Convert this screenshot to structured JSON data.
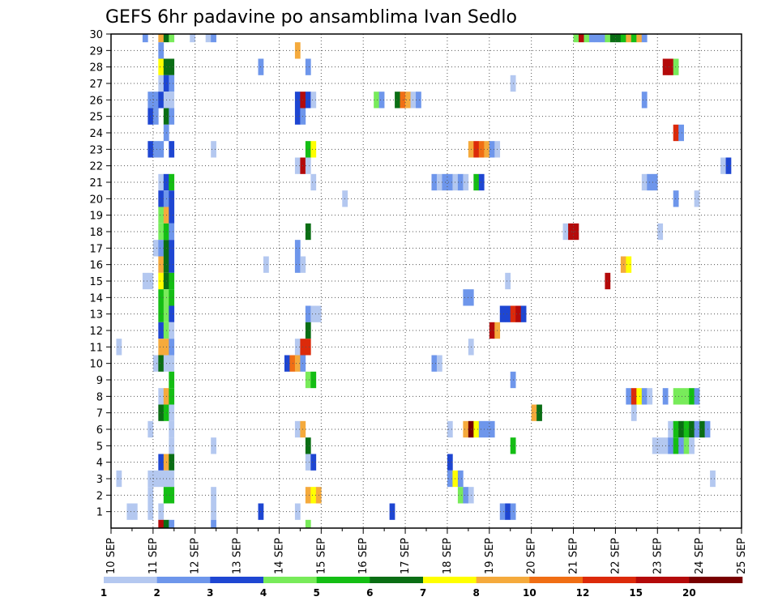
{
  "chart_data": {
    "type": "heatmap",
    "title": "GEFS 6hr padavine po ansamblima Ivan Sedlo",
    "xlabel": "",
    "ylabel": "",
    "x_tick_labels": [
      "10 SEP",
      "11 SEP",
      "12 SEP",
      "13 SEP",
      "14 SEP",
      "15 SEP",
      "16 SEP",
      "17 SEP",
      "18 SEP",
      "19 SEP",
      "20 SEP",
      "21 SEP",
      "22 SEP",
      "23 SEP",
      "24 SEP",
      "25 SEP"
    ],
    "xlim": [
      10,
      25
    ],
    "y_tick_labels": [
      "1",
      "2",
      "3",
      "4",
      "5",
      "6",
      "7",
      "8",
      "9",
      "10",
      "11",
      "12",
      "13",
      "14",
      "15",
      "16",
      "17",
      "18",
      "19",
      "20",
      "21",
      "22",
      "23",
      "24",
      "25",
      "26",
      "27",
      "28",
      "29",
      "30"
    ],
    "ylim": [
      0,
      30
    ],
    "grid": true,
    "colorbar": {
      "levels": [
        1,
        2,
        3,
        4,
        5,
        6,
        7,
        8,
        10,
        12,
        15,
        20
      ],
      "labels": [
        "1",
        "2",
        "3",
        "4",
        "5",
        "6",
        "7",
        "8",
        "10",
        "12",
        "15",
        "20"
      ],
      "colors": [
        "#b4c8f0",
        "#6e96eb",
        "#1e46d2",
        "#78eb5a",
        "#14be14",
        "#0a6e14",
        "#ffff00",
        "#f5aa3c",
        "#f06e14",
        "#dc2a0a",
        "#b40a0a",
        "#780000"
      ]
    },
    "cells": [
      {
        "row": 30,
        "cells": [
          [
            6,
            2
          ],
          [
            9,
            8
          ],
          [
            10,
            6
          ],
          [
            11,
            4
          ],
          [
            15,
            1
          ],
          [
            18,
            1
          ],
          [
            19,
            2
          ],
          [
            88,
            4
          ],
          [
            89,
            11
          ],
          [
            90,
            4
          ],
          [
            91,
            2
          ],
          [
            92,
            2
          ],
          [
            93,
            2
          ],
          [
            94,
            4
          ],
          [
            95,
            6
          ],
          [
            96,
            6
          ],
          [
            97,
            5
          ],
          [
            98,
            8
          ],
          [
            99,
            5
          ],
          [
            100,
            8
          ],
          [
            101,
            2
          ]
        ]
      },
      {
        "row": 29,
        "cells": [
          [
            9,
            2
          ],
          [
            35,
            8
          ]
        ]
      },
      {
        "row": 28,
        "cells": [
          [
            9,
            7
          ],
          [
            10,
            6
          ],
          [
            11,
            6
          ],
          [
            28,
            2
          ],
          [
            37,
            2
          ],
          [
            105,
            11
          ],
          [
            106,
            11
          ],
          [
            107,
            4
          ]
        ]
      },
      {
        "row": 27,
        "cells": [
          [
            9,
            1
          ],
          [
            10,
            3
          ],
          [
            11,
            2
          ],
          [
            76,
            1
          ]
        ]
      },
      {
        "row": 26,
        "cells": [
          [
            7,
            2
          ],
          [
            8,
            2
          ],
          [
            9,
            3
          ],
          [
            10,
            1
          ],
          [
            11,
            1
          ],
          [
            35,
            3
          ],
          [
            36,
            11
          ],
          [
            37,
            3
          ],
          [
            38,
            1
          ],
          [
            50,
            4
          ],
          [
            51,
            2
          ],
          [
            54,
            6
          ],
          [
            55,
            9
          ],
          [
            56,
            8
          ],
          [
            57,
            1
          ],
          [
            58,
            2
          ],
          [
            101,
            2
          ]
        ]
      },
      {
        "row": 25,
        "cells": [
          [
            7,
            3
          ],
          [
            8,
            2
          ],
          [
            10,
            6
          ],
          [
            11,
            2
          ],
          [
            35,
            3
          ],
          [
            36,
            2
          ]
        ]
      },
      {
        "row": 24,
        "cells": [
          [
            10,
            2
          ],
          [
            107,
            10
          ],
          [
            108,
            2
          ]
        ]
      },
      {
        "row": 23,
        "cells": [
          [
            7,
            3
          ],
          [
            8,
            2
          ],
          [
            9,
            2
          ],
          [
            11,
            3
          ],
          [
            19,
            1
          ],
          [
            37,
            5
          ],
          [
            38,
            7
          ],
          [
            68,
            8
          ],
          [
            69,
            10
          ],
          [
            70,
            9
          ],
          [
            71,
            8
          ],
          [
            72,
            2
          ],
          [
            73,
            1
          ]
        ]
      },
      {
        "row": 22,
        "cells": [
          [
            35,
            1
          ],
          [
            36,
            11
          ],
          [
            37,
            1
          ],
          [
            116,
            1
          ],
          [
            117,
            3
          ]
        ]
      },
      {
        "row": 21,
        "cells": [
          [
            9,
            1
          ],
          [
            10,
            3
          ],
          [
            11,
            5
          ],
          [
            38,
            1
          ],
          [
            61,
            2
          ],
          [
            62,
            1
          ],
          [
            63,
            2
          ],
          [
            64,
            2
          ],
          [
            65,
            1
          ],
          [
            66,
            2
          ],
          [
            67,
            1
          ],
          [
            69,
            5
          ],
          [
            70,
            3
          ],
          [
            101,
            1
          ],
          [
            102,
            2
          ],
          [
            103,
            2
          ]
        ]
      },
      {
        "row": 20,
        "cells": [
          [
            9,
            3
          ],
          [
            10,
            2
          ],
          [
            11,
            3
          ],
          [
            44,
            1
          ],
          [
            107,
            2
          ],
          [
            111,
            1
          ]
        ]
      },
      {
        "row": 19,
        "cells": [
          [
            9,
            4
          ],
          [
            10,
            8
          ],
          [
            11,
            3
          ]
        ]
      },
      {
        "row": 18,
        "cells": [
          [
            9,
            4
          ],
          [
            10,
            5
          ],
          [
            11,
            2
          ],
          [
            37,
            6
          ],
          [
            86,
            1
          ],
          [
            87,
            11
          ],
          [
            88,
            11
          ],
          [
            104,
            1
          ]
        ]
      },
      {
        "row": 17,
        "cells": [
          [
            8,
            1
          ],
          [
            9,
            2
          ],
          [
            10,
            6
          ],
          [
            11,
            3
          ],
          [
            35,
            2
          ]
        ]
      },
      {
        "row": 16,
        "cells": [
          [
            9,
            8
          ],
          [
            10,
            6
          ],
          [
            11,
            3
          ],
          [
            29,
            1
          ],
          [
            35,
            2
          ],
          [
            36,
            1
          ],
          [
            97,
            8
          ],
          [
            98,
            7
          ]
        ]
      },
      {
        "row": 15,
        "cells": [
          [
            6,
            1
          ],
          [
            7,
            1
          ],
          [
            9,
            7
          ],
          [
            10,
            6
          ],
          [
            11,
            5
          ],
          [
            75,
            1
          ],
          [
            94,
            11
          ]
        ]
      },
      {
        "row": 14,
        "cells": [
          [
            9,
            5
          ],
          [
            10,
            4
          ],
          [
            11,
            5
          ],
          [
            67,
            2
          ],
          [
            68,
            2
          ]
        ]
      },
      {
        "row": 13,
        "cells": [
          [
            9,
            5
          ],
          [
            10,
            4
          ],
          [
            11,
            3
          ],
          [
            37,
            2
          ],
          [
            38,
            1
          ],
          [
            39,
            1
          ],
          [
            74,
            3
          ],
          [
            75,
            3
          ],
          [
            76,
            10
          ],
          [
            77,
            11
          ],
          [
            78,
            3
          ]
        ]
      },
      {
        "row": 12,
        "cells": [
          [
            9,
            3
          ],
          [
            10,
            4
          ],
          [
            11,
            1
          ],
          [
            37,
            6
          ],
          [
            72,
            11
          ],
          [
            73,
            8
          ]
        ]
      },
      {
        "row": 11,
        "cells": [
          [
            1,
            1
          ],
          [
            9,
            8
          ],
          [
            10,
            8
          ],
          [
            11,
            2
          ],
          [
            35,
            1
          ],
          [
            36,
            10
          ],
          [
            37,
            10
          ],
          [
            68,
            1
          ]
        ]
      },
      {
        "row": 10,
        "cells": [
          [
            8,
            1
          ],
          [
            9,
            6
          ],
          [
            10,
            1
          ],
          [
            11,
            1
          ],
          [
            33,
            3
          ],
          [
            34,
            9
          ],
          [
            35,
            8
          ],
          [
            36,
            2
          ],
          [
            61,
            2
          ],
          [
            62,
            1
          ]
        ]
      },
      {
        "row": 9,
        "cells": [
          [
            11,
            5
          ],
          [
            37,
            4
          ],
          [
            38,
            5
          ],
          [
            76,
            2
          ]
        ]
      },
      {
        "row": 8,
        "cells": [
          [
            9,
            1
          ],
          [
            10,
            8
          ],
          [
            11,
            5
          ],
          [
            98,
            2
          ],
          [
            99,
            10
          ],
          [
            100,
            7
          ],
          [
            101,
            2
          ],
          [
            102,
            1
          ],
          [
            105,
            2
          ],
          [
            107,
            4
          ],
          [
            108,
            4
          ],
          [
            109,
            4
          ],
          [
            110,
            5
          ],
          [
            111,
            2
          ]
        ]
      },
      {
        "row": 7,
        "cells": [
          [
            9,
            6
          ],
          [
            10,
            5
          ],
          [
            11,
            1
          ],
          [
            80,
            8
          ],
          [
            81,
            6
          ],
          [
            99,
            1
          ]
        ]
      },
      {
        "row": 6,
        "cells": [
          [
            7,
            1
          ],
          [
            11,
            1
          ],
          [
            35,
            1
          ],
          [
            36,
            8
          ],
          [
            64,
            1
          ],
          [
            67,
            8
          ],
          [
            68,
            12
          ],
          [
            69,
            7
          ],
          [
            70,
            2
          ],
          [
            71,
            2
          ],
          [
            72,
            2
          ],
          [
            106,
            1
          ],
          [
            107,
            5
          ],
          [
            108,
            6
          ],
          [
            109,
            5
          ],
          [
            110,
            6
          ],
          [
            111,
            2
          ],
          [
            112,
            6
          ],
          [
            113,
            2
          ]
        ]
      },
      {
        "row": 5,
        "cells": [
          [
            11,
            1
          ],
          [
            19,
            1
          ],
          [
            37,
            6
          ],
          [
            76,
            5
          ],
          [
            103,
            1
          ],
          [
            104,
            1
          ],
          [
            105,
            1
          ],
          [
            106,
            2
          ],
          [
            107,
            5
          ],
          [
            108,
            2
          ],
          [
            109,
            4
          ],
          [
            110,
            1
          ]
        ]
      },
      {
        "row": 4,
        "cells": [
          [
            9,
            3
          ],
          [
            10,
            8
          ],
          [
            11,
            6
          ],
          [
            37,
            1
          ],
          [
            38,
            3
          ],
          [
            64,
            3
          ]
        ]
      },
      {
        "row": 3,
        "cells": [
          [
            1,
            1
          ],
          [
            7,
            1
          ],
          [
            8,
            1
          ],
          [
            9,
            1
          ],
          [
            10,
            1
          ],
          [
            11,
            1
          ],
          [
            64,
            2
          ],
          [
            65,
            7
          ],
          [
            66,
            2
          ],
          [
            114,
            1
          ]
        ]
      },
      {
        "row": 2,
        "cells": [
          [
            7,
            1
          ],
          [
            10,
            5
          ],
          [
            11,
            5
          ],
          [
            19,
            1
          ],
          [
            37,
            8
          ],
          [
            38,
            7
          ],
          [
            39,
            8
          ],
          [
            66,
            4
          ],
          [
            67,
            2
          ],
          [
            68,
            1
          ]
        ]
      },
      {
        "row": 1,
        "cells": [
          [
            3,
            1
          ],
          [
            4,
            1
          ],
          [
            7,
            1
          ],
          [
            9,
            1
          ],
          [
            19,
            1
          ],
          [
            28,
            3
          ],
          [
            35,
            1
          ],
          [
            53,
            3
          ],
          [
            74,
            2
          ],
          [
            75,
            3
          ],
          [
            76,
            2
          ]
        ]
      },
      {
        "row": 0,
        "cells": [
          [
            9,
            11
          ],
          [
            10,
            6
          ],
          [
            11,
            2
          ],
          [
            19,
            2
          ],
          [
            37,
            4
          ]
        ]
      }
    ]
  }
}
